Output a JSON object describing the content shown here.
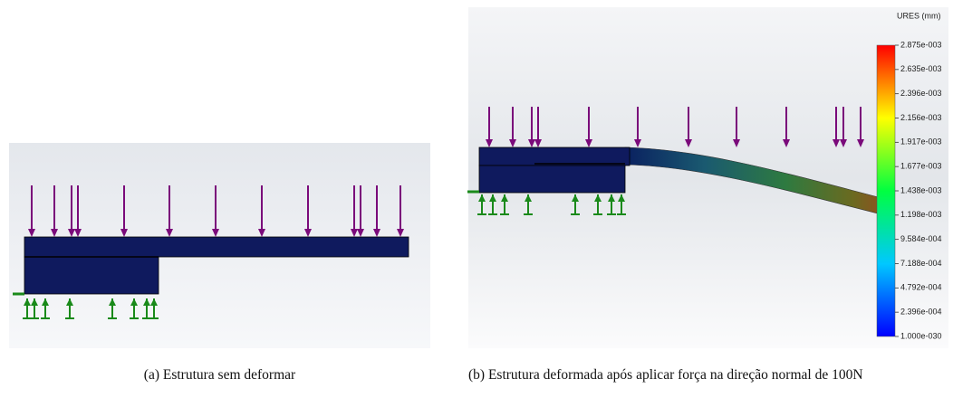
{
  "figure": {
    "panels": [
      {
        "caption": "(a) Estrutura sem deformar"
      },
      {
        "caption": "(b) Estrutura deformada após aplicar força na direção normal de 100N",
        "legend": {
          "title": "URES (mm)",
          "labels": [
            "2.875e-003",
            "2.635e-003",
            "2.396e-003",
            "2.156e-003",
            "1.917e-003",
            "1.677e-003",
            "1.438e-003",
            "1.198e-003",
            "9.584e-004",
            "7.188e-004",
            "4.792e-004",
            "2.396e-004",
            "1.000e-030"
          ]
        }
      }
    ]
  }
}
